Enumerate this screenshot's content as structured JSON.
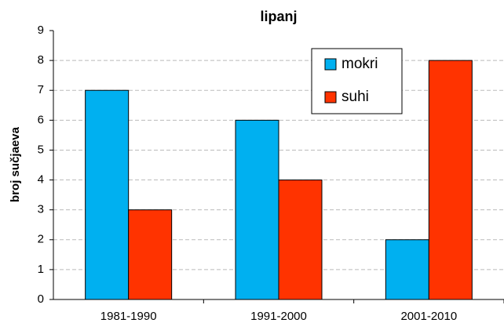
{
  "chart_data": {
    "type": "bar",
    "title": "lipanj",
    "y_label": "broj sučjaeva",
    "categories": [
      "1981-1990",
      "1991-2000",
      "2001-2010"
    ],
    "series": [
      {
        "name": "mokri",
        "color": "#00b0f0",
        "values": [
          7,
          6,
          2
        ]
      },
      {
        "name": "suhi",
        "color": "#ff3300",
        "values": [
          3,
          4,
          8
        ]
      }
    ],
    "ylim": [
      0,
      9
    ],
    "yticks": [
      0,
      1,
      2,
      3,
      4,
      5,
      6,
      7,
      8,
      9
    ],
    "grid": true,
    "legend": "upper-right"
  }
}
